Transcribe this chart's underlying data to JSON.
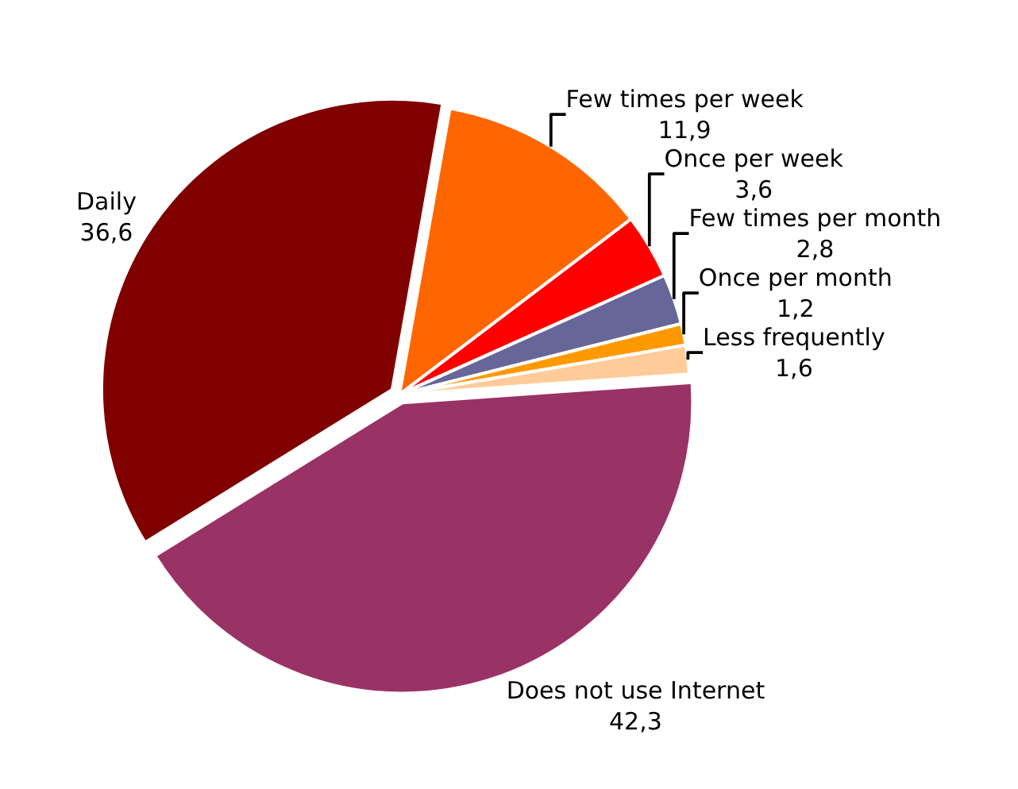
{
  "chart_data": {
    "type": "pie",
    "categories": [
      "Few times per week",
      "Once per week",
      "Few times per month",
      "Once per month",
      "Less frequently",
      "Does not use Internet",
      "Daily"
    ],
    "values": [
      11.9,
      3.6,
      2.8,
      1.2,
      1.6,
      42.3,
      36.6
    ],
    "value_labels": [
      "11,9",
      "3,6",
      "2,8",
      "1,2",
      "1,6",
      "42,3",
      "36,6"
    ],
    "colors": [
      "#ff6600",
      "#ff0000",
      "#666699",
      "#ff9900",
      "#ffcc99",
      "#993366",
      "#800000"
    ],
    "legend": false
  }
}
